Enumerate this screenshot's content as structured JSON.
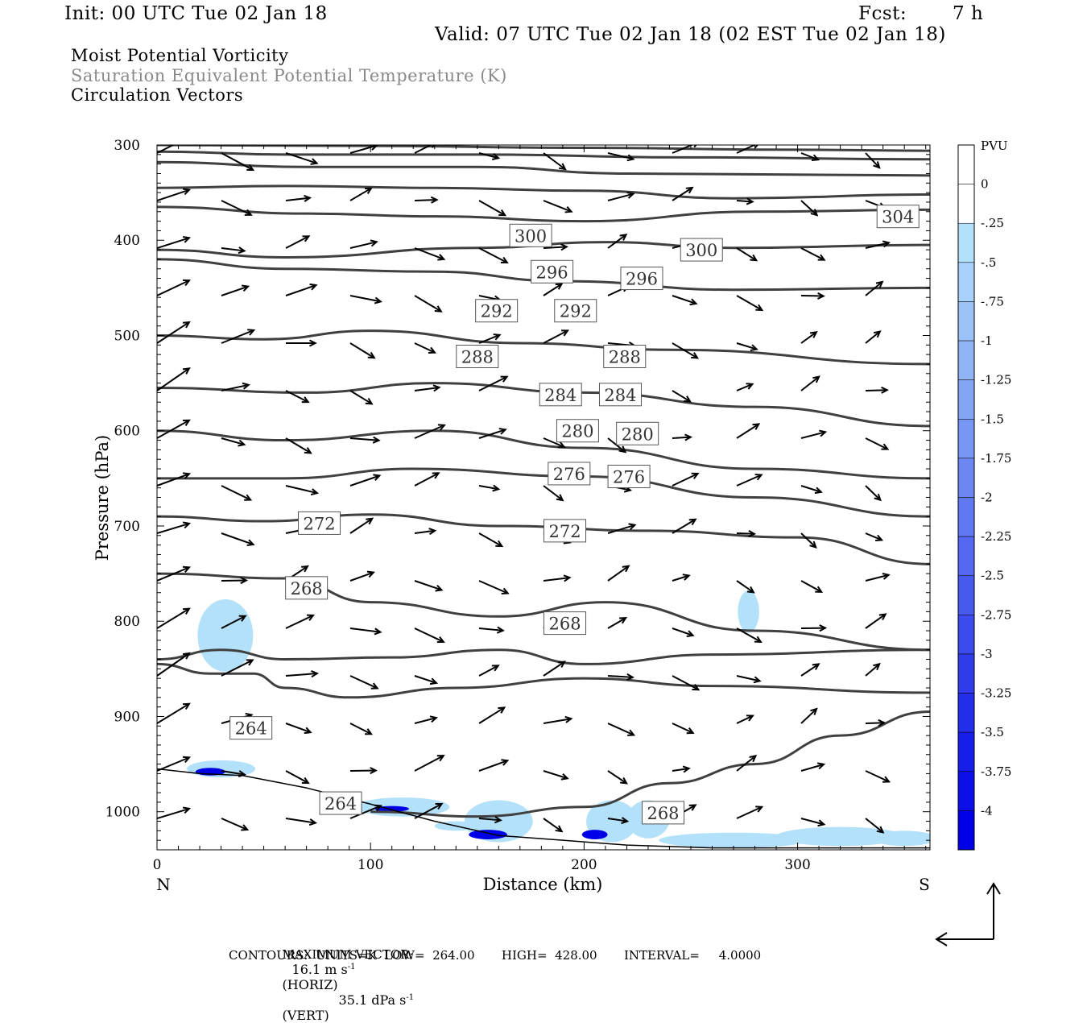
{
  "header": {
    "init": "Init: 00 UTC Tue 02 Jan 18",
    "fcst_label": "Fcst:",
    "fcst_value": "7 h",
    "valid": "Valid: 07 UTC Tue 02 Jan 18 (02 EST Tue 02 Jan 18)"
  },
  "fields": [
    "Moist Potential Vorticity",
    "Saturation Equivalent Potential Temperature (K)",
    "Circulation Vectors"
  ],
  "footer": {
    "max_vector_label": "MAXIMUM VECTOR:",
    "horiz_value": "16.1 m s",
    "horiz_exp": "-1",
    "horiz_tag": "(HORIZ)",
    "vert_value": "35.1 dPa s",
    "vert_exp": "-1",
    "vert_tag": "(VERT)",
    "contours": "CONTOURS:  UNITS=K  LOW=  264.00       HIGH=  428.00       INTERVAL=     4.0000"
  },
  "colors": {
    "contour": "#404040",
    "mpv_light": "#b4e1fa",
    "mpv_dark": "#0000e6"
  },
  "chart_data": {
    "type": "contour",
    "xlabel": "Distance (km)",
    "ylabel": "Pressure (hPa)",
    "xlim": [
      0,
      362
    ],
    "ylim": [
      1040,
      300
    ],
    "x_ticks": [
      0,
      100,
      200,
      300
    ],
    "y_ticks": [
      300,
      400,
      500,
      600,
      700,
      800,
      900,
      1000
    ],
    "x_end_labels": {
      "left": "N",
      "right": "S"
    },
    "contour_labels": [
      {
        "value": "300",
        "x": 175,
        "p": 395
      },
      {
        "value": "300",
        "x": 255,
        "p": 410
      },
      {
        "value": "304",
        "x": 347,
        "p": 375
      },
      {
        "value": "296",
        "x": 185,
        "p": 433
      },
      {
        "value": "296",
        "x": 227,
        "p": 440
      },
      {
        "value": "292",
        "x": 159,
        "p": 474
      },
      {
        "value": "292",
        "x": 196,
        "p": 474
      },
      {
        "value": "288",
        "x": 150,
        "p": 522
      },
      {
        "value": "288",
        "x": 219,
        "p": 522
      },
      {
        "value": "284",
        "x": 189,
        "p": 562
      },
      {
        "value": "284",
        "x": 217,
        "p": 562
      },
      {
        "value": "280",
        "x": 197,
        "p": 600
      },
      {
        "value": "280",
        "x": 225,
        "p": 603
      },
      {
        "value": "276",
        "x": 193,
        "p": 645
      },
      {
        "value": "276",
        "x": 221,
        "p": 648
      },
      {
        "value": "272",
        "x": 76,
        "p": 697
      },
      {
        "value": "272",
        "x": 191,
        "p": 705
      },
      {
        "value": "268",
        "x": 70,
        "p": 765
      },
      {
        "value": "268",
        "x": 191,
        "p": 802
      },
      {
        "value": "264",
        "x": 44,
        "p": 912
      },
      {
        "value": "264",
        "x": 86,
        "p": 991
      },
      {
        "value": "268",
        "x": 237,
        "p": 1001
      }
    ],
    "colorbar": {
      "title": "PVU",
      "labels": [
        "0",
        "-.25",
        "-.5",
        "-.75",
        "-1",
        "-1.25",
        "-1.5",
        "-1.75",
        "-2",
        "-2.25",
        "-2.5",
        "-2.75",
        "-3",
        "-3.25",
        "-3.5",
        "-3.75",
        "-4"
      ]
    }
  }
}
